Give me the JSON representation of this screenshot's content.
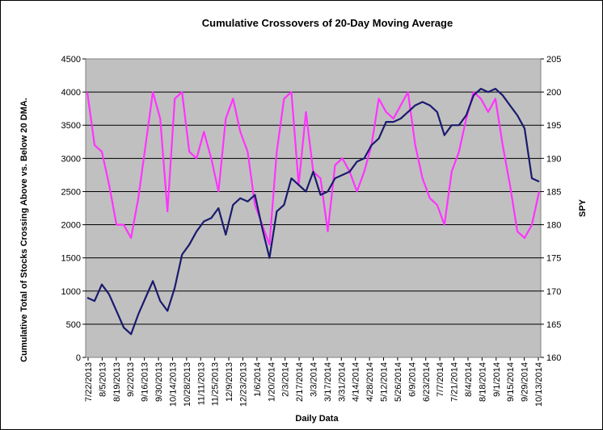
{
  "chart_data": {
    "type": "line",
    "title": "Cumulative Crossovers of 20-Day Moving Average",
    "xlabel": "Daily Data",
    "ylabel": "Cumulative Total of Stocks Crossing Above vs. Below 20 DMA.",
    "y2label": "SPY",
    "ylim": [
      0,
      4500
    ],
    "y2lim": [
      160,
      205
    ],
    "yticks": [
      0,
      500,
      1000,
      1500,
      2000,
      2500,
      3000,
      3500,
      4000,
      4500
    ],
    "y2ticks": [
      160,
      165,
      170,
      175,
      180,
      185,
      190,
      195,
      200,
      205
    ],
    "categories": [
      "7/22/2013",
      "8/5/2013",
      "8/19/2013",
      "9/2/2013",
      "9/16/2013",
      "9/30/2013",
      "10/14/2013",
      "10/28/2013",
      "11/11/2013",
      "11/25/2013",
      "12/9/2013",
      "12/23/2013",
      "1/6/2014",
      "1/20/2014",
      "2/3/2014",
      "2/17/2014",
      "3/3/2014",
      "3/17/2014",
      "3/31/2014",
      "4/14/2014",
      "4/28/2014",
      "5/12/2014",
      "5/26/2014",
      "6/9/2014",
      "6/23/2014",
      "7/7/2014",
      "7/21/2014",
      "8/4/2014",
      "8/18/2014",
      "9/1/2014",
      "9/15/2014",
      "9/29/2014",
      "10/13/2014"
    ],
    "grid": true,
    "series": [
      {
        "name": "Cumulative Total of Stocks Crossing Above vs. Below 20 DMA",
        "axis": "left",
        "color": "#1a1a6e",
        "points": [
          [
            0,
            900
          ],
          [
            1,
            850
          ],
          [
            2,
            1100
          ],
          [
            3,
            950
          ],
          [
            4,
            700
          ],
          [
            5,
            450
          ],
          [
            6,
            350
          ],
          [
            7,
            650
          ],
          [
            8,
            900
          ],
          [
            9,
            1150
          ],
          [
            10,
            850
          ],
          [
            11,
            700
          ],
          [
            12,
            1050
          ],
          [
            13,
            1550
          ],
          [
            14,
            1700
          ],
          [
            15,
            1900
          ],
          [
            16,
            2050
          ],
          [
            17,
            2100
          ],
          [
            18,
            2250
          ],
          [
            19,
            1850
          ],
          [
            20,
            2300
          ],
          [
            21,
            2400
          ],
          [
            22,
            2350
          ],
          [
            23,
            2450
          ],
          [
            24,
            1950
          ],
          [
            25,
            1500
          ],
          [
            26,
            2200
          ],
          [
            27,
            2300
          ],
          [
            28,
            2700
          ],
          [
            29,
            2600
          ],
          [
            30,
            2500
          ],
          [
            31,
            2800
          ],
          [
            32,
            2450
          ],
          [
            33,
            2500
          ],
          [
            34,
            2700
          ],
          [
            35,
            2750
          ],
          [
            36,
            2800
          ],
          [
            37,
            2950
          ],
          [
            38,
            3000
          ],
          [
            39,
            3200
          ],
          [
            40,
            3300
          ],
          [
            41,
            3550
          ],
          [
            42,
            3550
          ],
          [
            43,
            3600
          ],
          [
            44,
            3700
          ],
          [
            45,
            3800
          ],
          [
            46,
            3850
          ],
          [
            47,
            3800
          ],
          [
            48,
            3700
          ],
          [
            49,
            3350
          ],
          [
            50,
            3500
          ],
          [
            51,
            3500
          ],
          [
            52,
            3650
          ],
          [
            53,
            3950
          ],
          [
            54,
            4050
          ],
          [
            55,
            4000
          ],
          [
            56,
            4050
          ],
          [
            57,
            3950
          ],
          [
            58,
            3800
          ],
          [
            59,
            3650
          ],
          [
            60,
            3450
          ],
          [
            61,
            2700
          ],
          [
            62,
            2650
          ]
        ]
      },
      {
        "name": "SPY",
        "axis": "right",
        "color": "#ff33ff",
        "points": [
          [
            0,
            200
          ],
          [
            1,
            192
          ],
          [
            2,
            191
          ],
          [
            3,
            186
          ],
          [
            4,
            180
          ],
          [
            5,
            180
          ],
          [
            6,
            178
          ],
          [
            7,
            184
          ],
          [
            8,
            192
          ],
          [
            9,
            200
          ],
          [
            10,
            196
          ],
          [
            11,
            182
          ],
          [
            12,
            199
          ],
          [
            13,
            200
          ],
          [
            14,
            191
          ],
          [
            15,
            190
          ],
          [
            16,
            194
          ],
          [
            17,
            190
          ],
          [
            18,
            185
          ],
          [
            19,
            196
          ],
          [
            20,
            199
          ],
          [
            21,
            194
          ],
          [
            22,
            191
          ],
          [
            23,
            183
          ],
          [
            24,
            180
          ],
          [
            25,
            177
          ],
          [
            26,
            191
          ],
          [
            27,
            199
          ],
          [
            28,
            200
          ],
          [
            29,
            186
          ],
          [
            30,
            197
          ],
          [
            31,
            188
          ],
          [
            32,
            187
          ],
          [
            33,
            179
          ],
          [
            34,
            189
          ],
          [
            35,
            190
          ],
          [
            36,
            188
          ],
          [
            37,
            185
          ],
          [
            38,
            188
          ],
          [
            39,
            192
          ],
          [
            40,
            199
          ],
          [
            41,
            197
          ],
          [
            42,
            196
          ],
          [
            43,
            198
          ],
          [
            44,
            200
          ],
          [
            45,
            192
          ],
          [
            46,
            187
          ],
          [
            47,
            184
          ],
          [
            48,
            183
          ],
          [
            49,
            180
          ],
          [
            50,
            188
          ],
          [
            51,
            191
          ],
          [
            52,
            196
          ],
          [
            53,
            200
          ],
          [
            54,
            199
          ],
          [
            55,
            197
          ],
          [
            56,
            199
          ],
          [
            57,
            192
          ],
          [
            58,
            186
          ],
          [
            59,
            179
          ],
          [
            60,
            178
          ],
          [
            61,
            180
          ],
          [
            62,
            185
          ]
        ]
      }
    ]
  }
}
